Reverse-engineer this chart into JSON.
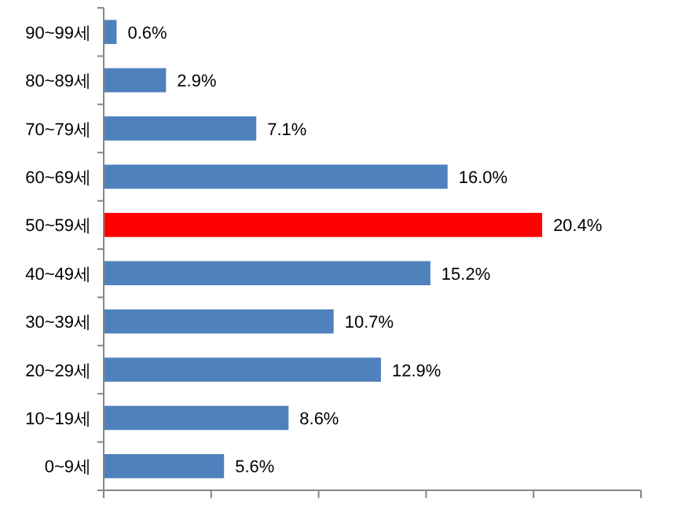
{
  "chart_data": {
    "type": "bar",
    "orientation": "horizontal",
    "categories": [
      "90~99세",
      "80~89세",
      "70~79세",
      "60~69세",
      "50~59세",
      "40~49세",
      "30~39세",
      "20~29세",
      "10~19세",
      "0~9세"
    ],
    "values": [
      0.6,
      2.9,
      7.1,
      16.0,
      20.4,
      15.2,
      10.7,
      12.9,
      8.6,
      5.6
    ],
    "colors": [
      "#4f81bd",
      "#4f81bd",
      "#4f81bd",
      "#4f81bd",
      "#ff0000",
      "#4f81bd",
      "#4f81bd",
      "#4f81bd",
      "#4f81bd",
      "#4f81bd"
    ],
    "value_labels": [
      "0.6%",
      "2.9%",
      "7.1%",
      "16.0%",
      "20.4%",
      "15.2%",
      "10.7%",
      "12.9%",
      "8.6%",
      "5.6%"
    ],
    "xlim": [
      0,
      25
    ],
    "xticks": [
      {
        "value": 0,
        "label": null
      },
      {
        "value": 5,
        "label": null
      },
      {
        "value": 10,
        "label": null
      },
      {
        "value": 15,
        "label": null
      },
      {
        "value": 20,
        "label": null
      },
      {
        "value": 25,
        "label": null
      }
    ],
    "grid": false
  }
}
